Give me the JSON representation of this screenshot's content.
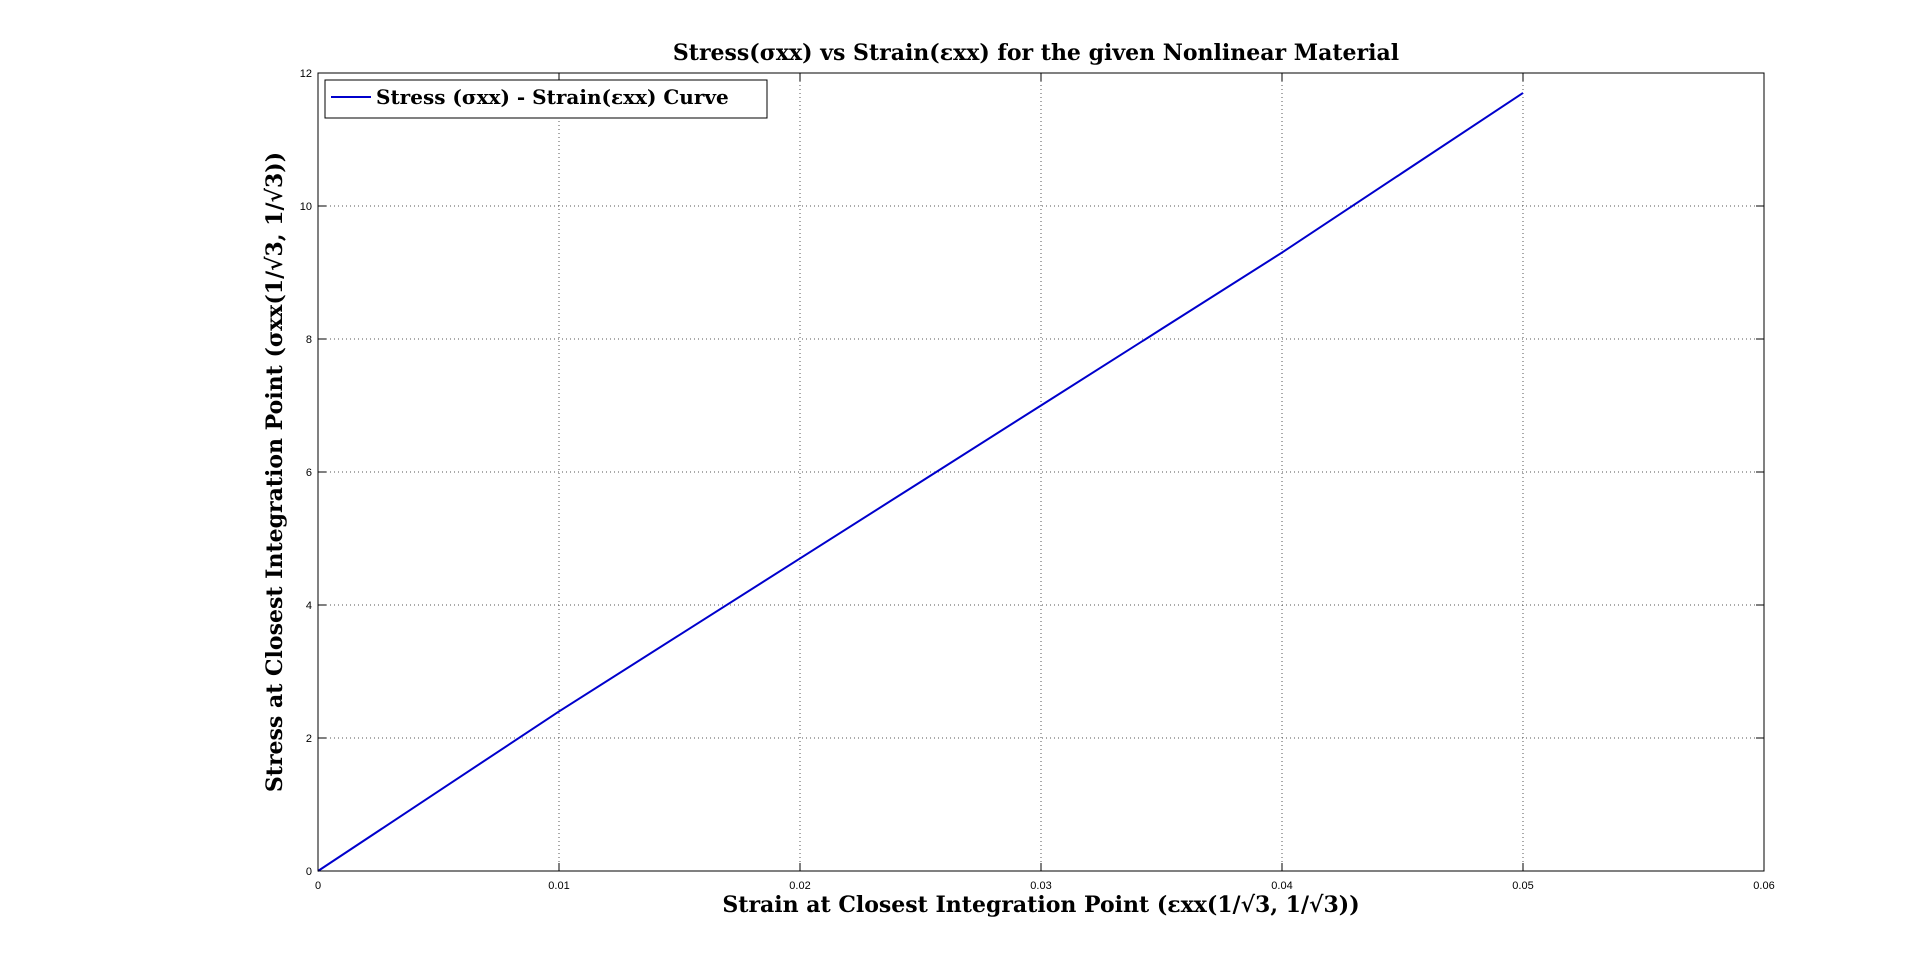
{
  "chart_data": {
    "type": "line",
    "title": "Stress(σxx) vs Strain(εxx) for the given Nonlinear Material",
    "xlabel": "Strain at Closest Integration Point (εxx(1/√3, 1/√3))",
    "ylabel": "Stress at Closest Integration Point (σxx(1/√3, 1/√3))",
    "xlim": [
      0,
      0.06
    ],
    "ylim": [
      0,
      12
    ],
    "x_ticks": [
      0,
      0.01,
      0.02,
      0.03,
      0.04,
      0.05,
      0.06
    ],
    "x_tick_labels": [
      "0",
      "0.01",
      "0.02",
      "0.03",
      "0.04",
      "0.05",
      "0.06"
    ],
    "y_ticks": [
      0,
      2,
      4,
      6,
      8,
      10,
      12
    ],
    "y_tick_labels": [
      "0",
      "2",
      "4",
      "6",
      "8",
      "10",
      "12"
    ],
    "grid": true,
    "legend_position": "top-left",
    "series": [
      {
        "name": "Stress (σxx) - Strain(εxx) Curve",
        "color": "#0000cc",
        "x": [
          0,
          0.005,
          0.01,
          0.015,
          0.02,
          0.025,
          0.03,
          0.035,
          0.04,
          0.045,
          0.05
        ],
        "y": [
          0,
          1.2,
          2.4,
          3.55,
          4.7,
          5.85,
          7.0,
          8.15,
          9.3,
          10.5,
          11.7
        ]
      }
    ]
  }
}
